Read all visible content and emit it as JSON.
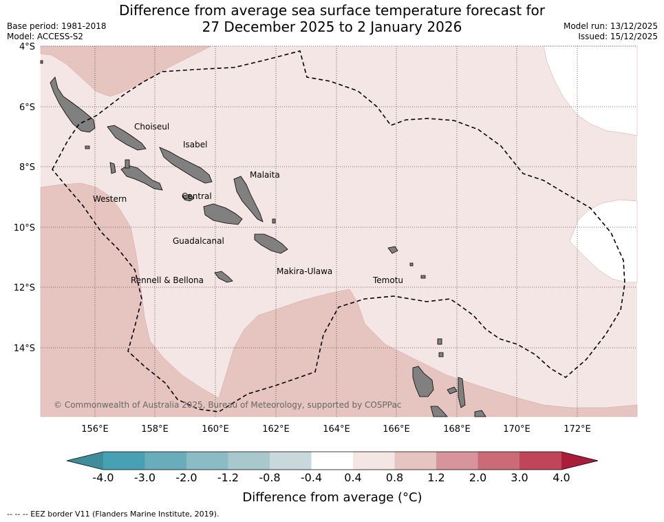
{
  "header": {
    "title_line1": "Difference from average sea surface temperature forecast for",
    "title_line2": "27 December 2025 to 2 January 2026",
    "base_period": "Base period: 1981-2018",
    "model": "Model: ACCESS-S2",
    "model_run": "Model run: 13/12/2025",
    "issued": "Issued: 15/12/2025"
  },
  "map": {
    "latitude_labels": [
      "4°S",
      "6°S",
      "8°S",
      "10°S",
      "12°S",
      "14°S"
    ],
    "longitude_labels": [
      "156°E",
      "158°E",
      "160°E",
      "162°E",
      "164°E",
      "166°E",
      "168°E",
      "170°E",
      "172°E"
    ],
    "regions": [
      "Choiseul",
      "Isabel",
      "Malaita",
      "Western",
      "Central",
      "Guadalcanal",
      "Makira-Ulawa",
      "Rennell & Bellona",
      "Temotu"
    ],
    "copyright": "© Commonwealth of Australia 2025, Bureau of Meteorology, supported by COSPPac",
    "colors": {
      "anomaly_04_08": "#f4e6e4",
      "anomaly_08_12": "#e6c4c0",
      "land": "#808080",
      "eez": "#000000"
    }
  },
  "colorbar": {
    "ticks": [
      "-4.0",
      "-3.0",
      "-2.0",
      "-1.2",
      "-0.8",
      "-0.4",
      "0.4",
      "0.8",
      "1.2",
      "2.0",
      "3.0",
      "4.0"
    ],
    "colors": [
      "#47a1b2",
      "#69acbb",
      "#8bbbc5",
      "#a9c8cd",
      "#c8d8dc",
      "#ffffff",
      "#f4e6e4",
      "#e6c4c0",
      "#d7949a",
      "#ca6b77",
      "#bf4558"
    ],
    "extend_low": "#3f8d9b",
    "extend_high": "#a91d3a",
    "label": "Difference from average (°C)"
  },
  "footnote": "-- -- -- EEZ border V11 (Flanders Marine Institute, 2019)."
}
